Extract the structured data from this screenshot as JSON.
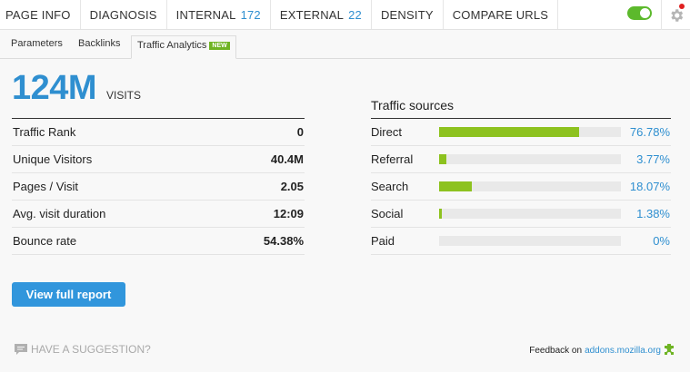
{
  "nav": {
    "tabs": [
      {
        "label": "PAGE INFO",
        "count": ""
      },
      {
        "label": "DIAGNOSIS",
        "count": ""
      },
      {
        "label": "INTERNAL",
        "count": "172"
      },
      {
        "label": "EXTERNAL",
        "count": "22"
      },
      {
        "label": "DENSITY",
        "count": ""
      },
      {
        "label": "COMPARE URLS",
        "count": ""
      }
    ],
    "toggle_on": true,
    "gear_icon": "gear-icon",
    "accent_color": "#2f8fd0"
  },
  "subtabs": {
    "items": [
      "Parameters",
      "Backlinks",
      "Traffic Analytics"
    ],
    "active": "Traffic Analytics",
    "new_badge": "NEW"
  },
  "summary": {
    "visits_value": "124M",
    "visits_label": "VISITS"
  },
  "stats": [
    {
      "label": "Traffic Rank",
      "value": "0"
    },
    {
      "label": "Unique Visitors",
      "value": "40.4M"
    },
    {
      "label": "Pages / Visit",
      "value": "2.05"
    },
    {
      "label": "Avg. visit duration",
      "value": "12:09"
    },
    {
      "label": "Bounce rate",
      "value": "54.38%"
    }
  ],
  "traffic_sources": {
    "title": "Traffic sources",
    "bar_color": "#8dc21f",
    "items": [
      {
        "label": "Direct",
        "percent": 76.78,
        "text": "76.78%"
      },
      {
        "label": "Referral",
        "percent": 3.77,
        "text": "3.77%"
      },
      {
        "label": "Search",
        "percent": 18.07,
        "text": "18.07%"
      },
      {
        "label": "Social",
        "percent": 1.38,
        "text": "1.38%"
      },
      {
        "label": "Paid",
        "percent": 0,
        "text": "0%"
      }
    ]
  },
  "actions": {
    "view_report": "View full report"
  },
  "footer": {
    "suggestion": "HAVE A SUGGESTION?",
    "feedback_prefix": "Feedback on",
    "feedback_link": "addons.mozilla.org"
  }
}
